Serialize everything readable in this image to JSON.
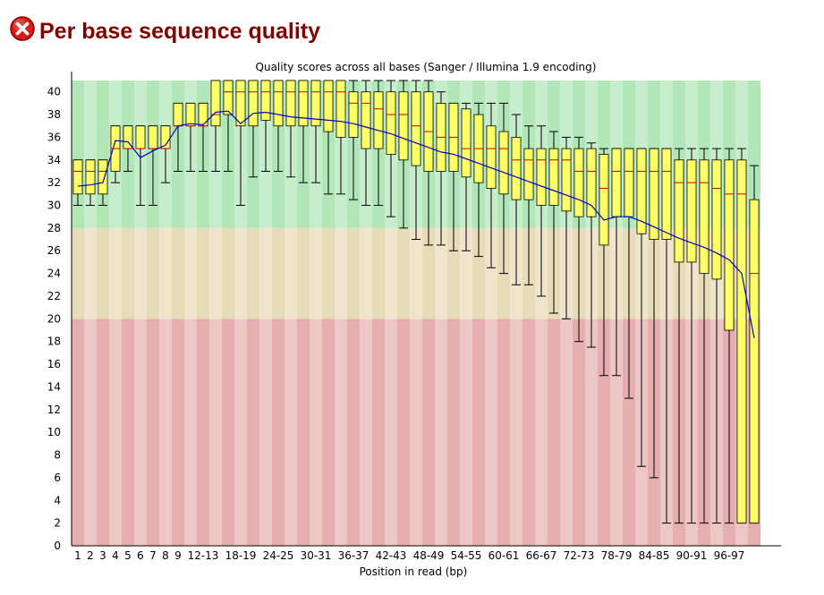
{
  "header": {
    "title": "Per base sequence quality",
    "status_icon": "error-icon",
    "status_color": "#cc0000"
  },
  "chart_data": {
    "type": "box",
    "title": "Quality scores across all bases (Sanger / Illumina 1.9 encoding)",
    "xlabel": "Position in read (bp)",
    "ylabel": "",
    "ylim": [
      0,
      41
    ],
    "yticks": [
      0,
      2,
      4,
      6,
      8,
      10,
      12,
      14,
      16,
      18,
      20,
      22,
      24,
      26,
      28,
      30,
      32,
      34,
      36,
      38,
      40
    ],
    "zones": [
      {
        "from": 0,
        "to": 20,
        "color": "#e6aeae"
      },
      {
        "from": 20,
        "to": 28,
        "color": "#e6dcb8"
      },
      {
        "from": 28,
        "to": 41,
        "color": "#b0e6b8"
      }
    ],
    "colors": {
      "box": "#ffff66",
      "median": "#cc0000",
      "mean": "#0000cc",
      "whisker": "#000000"
    },
    "categories": [
      "1",
      "2",
      "3",
      "4",
      "5",
      "6",
      "7",
      "8",
      "9",
      "10-11",
      "12-13",
      "14-15",
      "16-17",
      "18-19",
      "20-21",
      "22-23",
      "24-25",
      "26-27",
      "28-29",
      "30-31",
      "32-33",
      "34-35",
      "36-37",
      "38-39",
      "40-41",
      "42-43",
      "44-45",
      "46-47",
      "48-49",
      "50-51",
      "52-53",
      "54-55",
      "56-57",
      "58-59",
      "60-61",
      "62-63",
      "64-65",
      "66-67",
      "68-69",
      "70-71",
      "72-73",
      "74-75",
      "76-77",
      "78-79",
      "80-81",
      "82-83",
      "84-85",
      "86-87",
      "88-89",
      "90-91",
      "92-93",
      "94-95",
      "96-97",
      "98-99",
      "100"
    ],
    "xtick_labels": [
      "1",
      "2",
      "3",
      "4",
      "5",
      "6",
      "7",
      "8",
      "9",
      "12-13",
      "18-19",
      "24-25",
      "30-31",
      "36-37",
      "42-43",
      "48-49",
      "54-55",
      "60-61",
      "66-67",
      "72-73",
      "78-79",
      "84-85",
      "90-91",
      "96-97"
    ],
    "xtick_indices": [
      0,
      1,
      2,
      3,
      4,
      5,
      6,
      7,
      8,
      10,
      13,
      16,
      19,
      22,
      25,
      28,
      31,
      34,
      37,
      40,
      43,
      46,
      49,
      52
    ],
    "boxes": {
      "q1": [
        31,
        31,
        31,
        33,
        35,
        35,
        35,
        35,
        37,
        37,
        37,
        37,
        38,
        37,
        37,
        37.5,
        37,
        37,
        37,
        37,
        36.5,
        36,
        36,
        35,
        35,
        34.5,
        34,
        33.5,
        33,
        33,
        33,
        32.5,
        32,
        31.5,
        31,
        30.5,
        30.5,
        30,
        30,
        29.5,
        29,
        29,
        26.5,
        29,
        29,
        27.5,
        27,
        27,
        25,
        25,
        24,
        23.5,
        19,
        2,
        2
      ],
      "median": [
        33,
        33,
        33,
        35,
        35,
        35,
        35,
        35,
        37,
        37,
        37,
        38,
        40,
        40,
        40,
        40,
        40,
        40,
        40,
        40,
        40,
        40,
        39,
        39,
        38.5,
        38,
        38,
        37,
        36.5,
        36,
        36,
        35,
        35,
        35,
        35,
        34,
        34,
        34,
        34,
        34,
        33,
        33,
        31.5,
        33,
        33,
        33,
        33,
        33,
        32,
        32,
        32,
        31.5,
        31,
        31,
        24
      ],
      "q3": [
        34,
        34,
        34,
        37,
        37,
        37,
        37,
        37,
        39,
        39,
        39,
        41,
        41,
        41,
        41,
        41,
        41,
        41,
        41,
        41,
        41,
        41,
        40,
        40,
        40,
        40,
        40,
        40,
        40,
        39,
        39,
        38.5,
        38,
        37,
        36.5,
        36,
        35,
        35,
        35,
        35,
        35,
        35,
        34.5,
        35,
        35,
        35,
        35,
        35,
        34,
        34,
        34,
        34,
        34,
        34,
        30.5
      ],
      "low": [
        30,
        30,
        30,
        32,
        33,
        30,
        30,
        32,
        33,
        33,
        33,
        33,
        33,
        30,
        32.5,
        33,
        33,
        32.5,
        32,
        32,
        31,
        31,
        30.5,
        30,
        30,
        29,
        28,
        27,
        26.5,
        26.5,
        26,
        26,
        25.5,
        24.5,
        24,
        23,
        23,
        22,
        20.5,
        20,
        18,
        17.5,
        15,
        15,
        13,
        7,
        6,
        2,
        2,
        2,
        2,
        2,
        2,
        2,
        2
      ],
      "high": [
        34,
        34,
        34,
        37,
        37,
        37,
        37,
        37,
        39,
        39,
        39,
        41,
        41,
        41,
        41,
        41,
        41,
        41,
        41,
        41,
        41,
        41,
        41,
        41,
        41,
        41,
        41,
        41,
        41,
        40,
        39,
        39,
        39,
        39,
        39,
        38,
        37,
        37,
        36.5,
        36,
        36,
        35.5,
        35,
        35,
        35,
        35,
        35,
        35,
        35,
        35,
        35,
        35,
        35,
        35,
        33.5
      ],
      "mean": [
        31.7,
        31.8,
        32,
        35.7,
        35.6,
        34.2,
        34.8,
        35.3,
        37,
        37.2,
        37.1,
        38.2,
        38.3,
        37.2,
        38.1,
        38.2,
        38,
        37.8,
        37.7,
        37.6,
        37.5,
        37.4,
        37.2,
        36.9,
        36.6,
        36.3,
        35.9,
        35.5,
        35.1,
        34.7,
        34.5,
        34.1,
        33.7,
        33.3,
        32.9,
        32.5,
        32.1,
        31.7,
        31.3,
        30.9,
        30.5,
        30,
        28.7,
        29,
        29,
        28.6,
        28.1,
        27.6,
        27.1,
        26.7,
        26.3,
        25.8,
        25.2,
        24,
        18.3
      ]
    }
  }
}
